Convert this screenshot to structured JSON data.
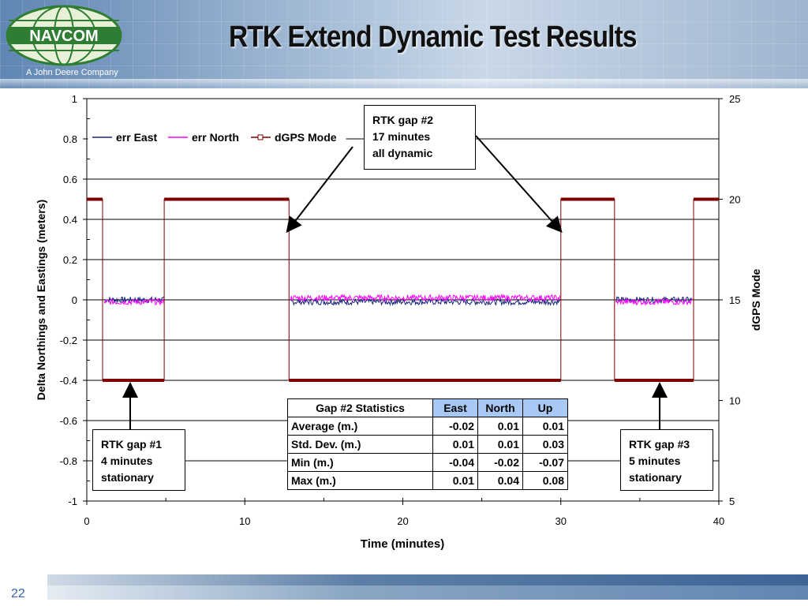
{
  "slide": {
    "title": "RTK Extend Dynamic Test Results",
    "logo_text": "NAVCOM",
    "tagline": "A John Deere Company",
    "page_number": "22"
  },
  "chart_data": {
    "type": "line",
    "xlabel": "Time (minutes)",
    "ylabel": "Delta Northings and Eastings (meters)",
    "y2label": "dGPS Mode",
    "xlim": [
      0,
      40
    ],
    "ylim": [
      -1,
      1
    ],
    "y2lim": [
      5,
      25
    ],
    "x_ticks": [
      "0",
      "10",
      "20",
      "30",
      "40"
    ],
    "y_ticks": [
      "1",
      "0.8",
      "0.6",
      "0.4",
      "0.2",
      "0",
      "-0.2",
      "-0.4",
      "-0.6",
      "-0.8",
      "-1"
    ],
    "y2_ticks": [
      "25",
      "20",
      "15",
      "10",
      "5"
    ],
    "legend_position": "top-left",
    "series": [
      {
        "name": "err East",
        "color": "#1a237e",
        "segments": [
          [
            1.1,
            4.9,
            0.0
          ],
          [
            12.9,
            30.0,
            -0.01
          ],
          [
            33.5,
            38.3,
            0.0
          ]
        ]
      },
      {
        "name": "err North",
        "color": "#ff00ff",
        "segments": [
          [
            1.1,
            4.9,
            -0.01
          ],
          [
            12.9,
            30.0,
            0.01
          ],
          [
            33.5,
            38.3,
            -0.01
          ]
        ]
      },
      {
        "name": "dGPS Mode",
        "color": "#800000",
        "x": [
          0,
          1.0,
          1.0,
          4.9,
          4.9,
          12.8,
          12.8,
          30.0,
          30.0,
          33.4,
          33.4,
          38.4,
          38.4,
          40
        ],
        "y": [
          20,
          20,
          11,
          11,
          20,
          20,
          11,
          11,
          20,
          20,
          11,
          11,
          20,
          20
        ]
      }
    ]
  },
  "annotations": {
    "gap2": [
      "RTK gap #2",
      "17 minutes",
      "all dynamic"
    ],
    "gap1": [
      "RTK gap #1",
      "4 minutes",
      "stationary"
    ],
    "gap3": [
      "RTK gap #3",
      "5 minutes",
      "stationary"
    ]
  },
  "stats_table": {
    "headers": [
      "Gap #2 Statistics",
      "East",
      "North",
      "Up"
    ],
    "rows": [
      [
        "Average (m.)",
        "-0.02",
        "0.01",
        "0.01"
      ],
      [
        "Std. Dev. (m.)",
        "0.01",
        "0.01",
        "0.03"
      ],
      [
        "Min (m.)",
        "-0.04",
        "-0.02",
        "-0.07"
      ],
      [
        "Max (m.)",
        "0.01",
        "0.04",
        "0.08"
      ]
    ]
  }
}
